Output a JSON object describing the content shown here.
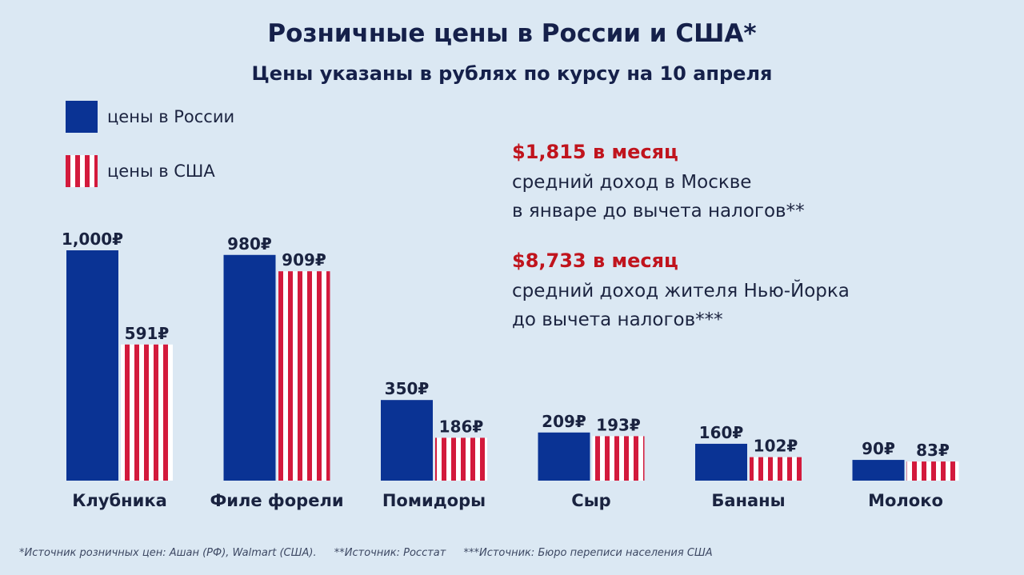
{
  "title": "Розничные цены в России и США*",
  "subtitle": "Цены указаны в рублях по курсу на 10 апреля",
  "legend": [
    {
      "label": "цены в России",
      "color": "#0a3394"
    },
    {
      "label": "цены в США",
      "color": "#d31a3c"
    }
  ],
  "incomes": [
    {
      "amount": "$1,815 в месяц",
      "line1": "средний доход в Москве",
      "line2": "в январе до вычета налогов**"
    },
    {
      "amount": "$8,733 в месяц",
      "line1": "средний доход жителя Нью-Йорка",
      "line2": "до вычета налогов***"
    }
  ],
  "footnotes": [
    "*Источник розничных цен: Ашан (РФ), Walmart (США).",
    "**Источник: Росстат",
    "***Источник: Бюро переписи населения США"
  ],
  "chart_data": {
    "type": "bar",
    "categories": [
      "Клубника",
      "Филе форели",
      "Помидоры",
      "Сыр",
      "Бананы",
      "Молоко"
    ],
    "series": [
      {
        "name": "цены в России",
        "values": [
          1000,
          980,
          350,
          209,
          160,
          90
        ],
        "labels": [
          "1,000₽",
          "980₽",
          "350₽",
          "209₽",
          "160₽",
          "90₽"
        ],
        "color": "#0a3394"
      },
      {
        "name": "цены в США",
        "values": [
          591,
          909,
          186,
          193,
          102,
          83
        ],
        "labels": [
          "591₽",
          "909₽",
          "186₽",
          "193₽",
          "102₽",
          "83₽"
        ],
        "color": "#d31a3c"
      }
    ],
    "ylim": [
      0,
      1000
    ],
    "grid": false,
    "legend_position": "top-left"
  }
}
